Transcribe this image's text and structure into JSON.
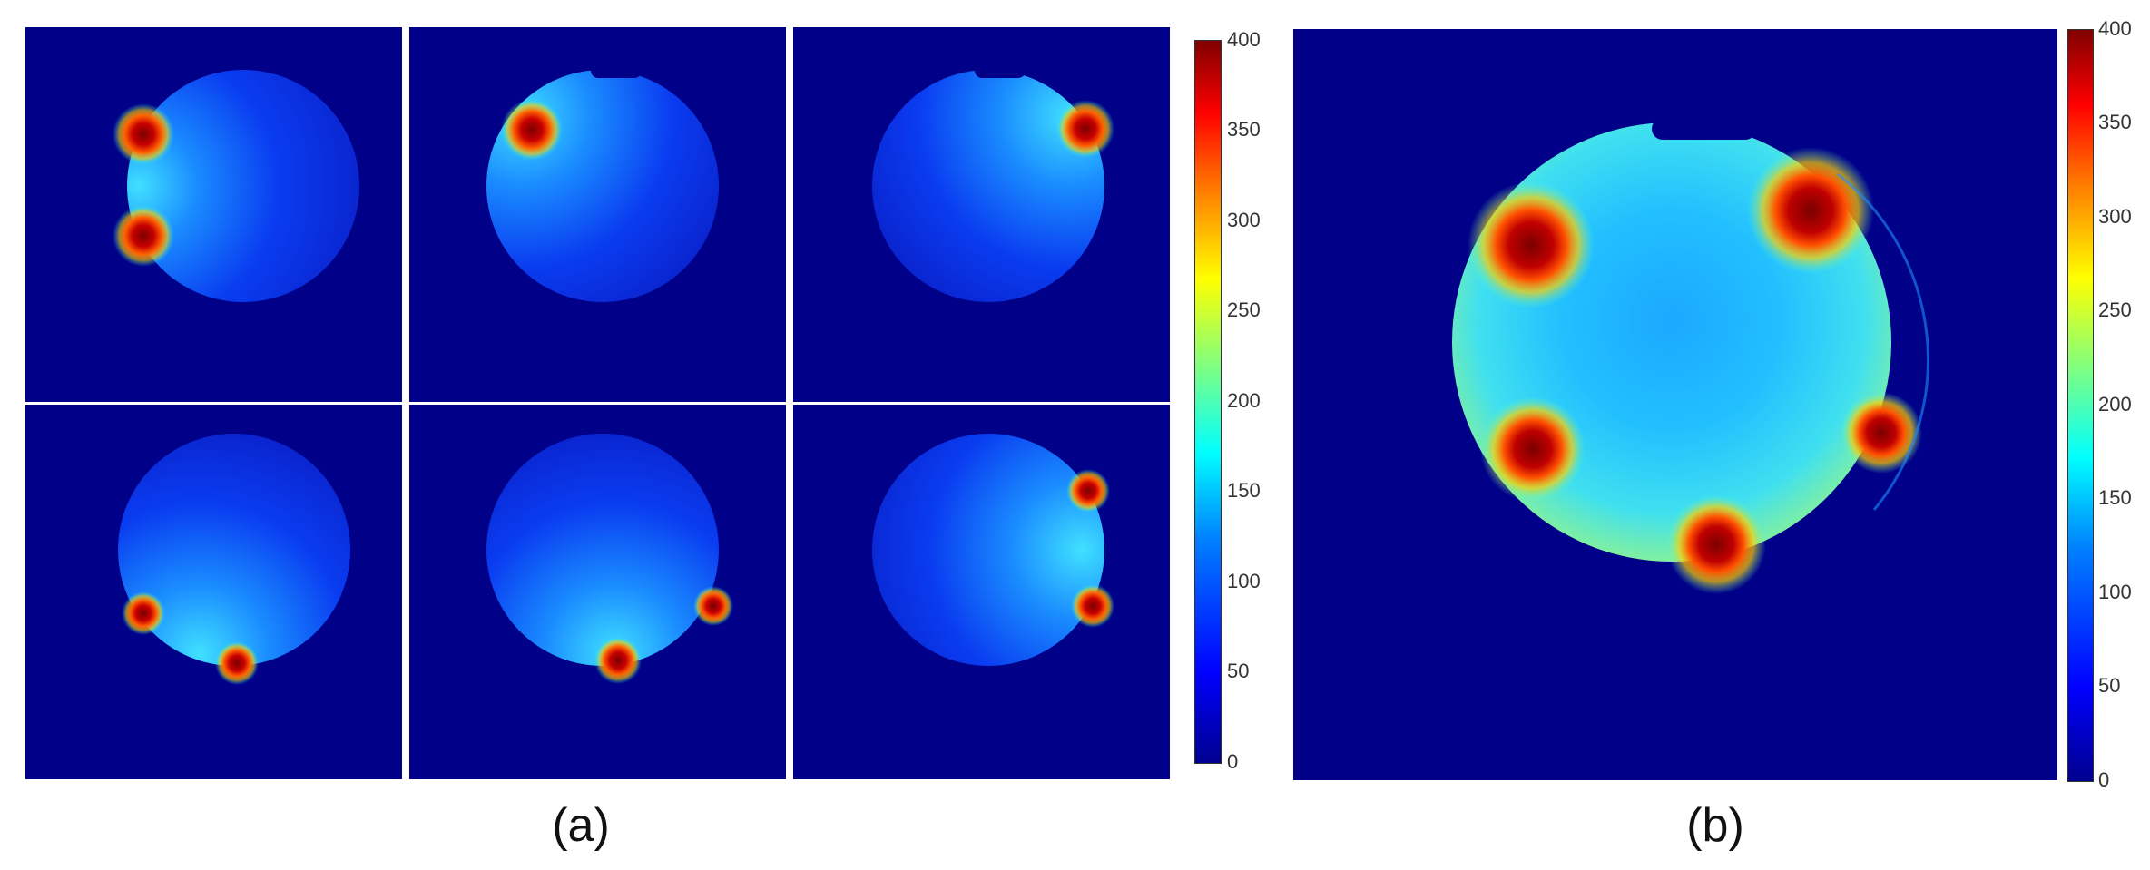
{
  "panels": {
    "a": {
      "caption": "(a)",
      "colorbar": {
        "ticks": [
          "400",
          "350",
          "300",
          "250",
          "200",
          "150",
          "100",
          "50",
          "0"
        ]
      },
      "tiles": [
        {
          "id": "tile-1",
          "label": ""
        },
        {
          "id": "tile-2",
          "label": ""
        },
        {
          "id": "tile-3",
          "label": ""
        },
        {
          "id": "tile-4",
          "label": ""
        },
        {
          "id": "tile-5",
          "label": ""
        },
        {
          "id": "tile-6",
          "label": ""
        }
      ]
    },
    "b": {
      "caption": "(b)",
      "colorbar": {
        "ticks": [
          "400",
          "350",
          "300",
          "250",
          "200",
          "150",
          "100",
          "50",
          "0"
        ]
      }
    }
  },
  "colormap": "jet",
  "colors": {
    "background_field": "#000088",
    "hotspot": "#8b0000",
    "mid": "#00c8ff"
  }
}
